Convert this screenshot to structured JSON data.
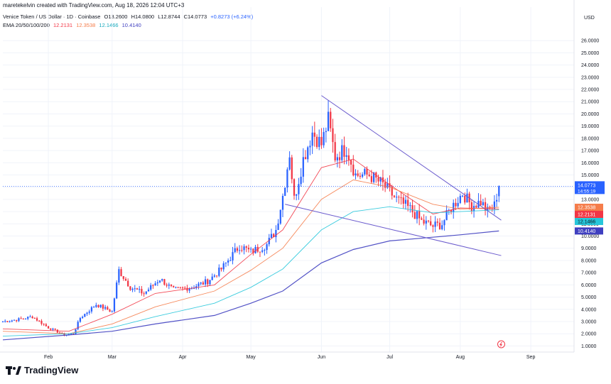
{
  "header": {
    "credit": "maretekelvin created with TradingView.com, Aug 18, 2026 12:04 UTC+3"
  },
  "symbol": {
    "title": "Venice Token / US Dollar · 1D · Coinbase",
    "open": "O13.2600",
    "high": "H14.0800",
    "low": "L12.8744",
    "close": "C14.0773",
    "change": "+0.8273 (+6.24%)"
  },
  "ema": {
    "label": "EMA 20/50/100/200",
    "v20": "12.2131",
    "v50": "12.3538",
    "v100": "12.1466",
    "v200": "10.4140"
  },
  "colors": {
    "up": "#2962ff",
    "down": "#f23645",
    "ema20": "#f23645",
    "ema50": "#f57c4a",
    "ema100": "#26c6da",
    "ema200": "#3f3fc0",
    "trend": "#6a5acd",
    "price": "#2962ff"
  },
  "footer": {
    "logo_text": "TradingView",
    "logo_icon": "tradingview-logo-icon"
  },
  "chart_data": {
    "type": "candlestick",
    "currency": "USD",
    "y_scale": "linear",
    "ylim": [
      0.5,
      27
    ],
    "y_ticks": [
      "26.0000",
      "25.0000",
      "24.0000",
      "23.0000",
      "22.0000",
      "21.0000",
      "20.0000",
      "19.0000",
      "18.0000",
      "17.0000",
      "16.0000",
      "15.0000",
      "14.0000",
      "13.0000",
      "12.0000",
      "11.0000",
      "10.0000",
      "9.0000",
      "8.0000",
      "7.0000",
      "6.0000",
      "5.0000",
      "4.0000",
      "3.0000",
      "2.0000",
      "1.0000"
    ],
    "x_ticks": [
      {
        "label": "Feb",
        "date": "2026-02-01"
      },
      {
        "label": "Mar",
        "date": "2026-03-01"
      },
      {
        "label": "Apr",
        "date": "2026-04-01"
      },
      {
        "label": "May",
        "date": "2026-05-01"
      },
      {
        "label": "Jun",
        "date": "2026-06-01"
      },
      {
        "label": "Jul",
        "date": "2026-07-01"
      },
      {
        "label": "Aug",
        "date": "2026-08-01"
      },
      {
        "label": "Sep",
        "date": "2026-09-01"
      }
    ],
    "xlim": [
      "2026-01-12",
      "2026-09-20"
    ],
    "price_label": {
      "value": "14.0773",
      "countdown": "14:55:19"
    },
    "ema_labels": [
      {
        "name": "EMA 50",
        "value": "12.3538"
      },
      {
        "name": "EMA 20",
        "value": "12.2131"
      },
      {
        "name": "EMA 100",
        "value": "12.1466"
      },
      {
        "name": "EMA 200",
        "value": "10.4140"
      }
    ],
    "key_points": [
      [
        "2026-01-12",
        3.0
      ],
      [
        "2026-01-20",
        3.2
      ],
      [
        "2026-01-25",
        3.4
      ],
      [
        "2026-02-01",
        2.5
      ],
      [
        "2026-02-08",
        1.9
      ],
      [
        "2026-02-12",
        2.0
      ],
      [
        "2026-02-15",
        3.3
      ],
      [
        "2026-02-22",
        4.4
      ],
      [
        "2026-03-01",
        3.8
      ],
      [
        "2026-03-04",
        7.2
      ],
      [
        "2026-03-09",
        5.8
      ],
      [
        "2026-03-15",
        5.3
      ],
      [
        "2026-03-22",
        6.5
      ],
      [
        "2026-03-28",
        5.6
      ],
      [
        "2026-04-05",
        5.8
      ],
      [
        "2026-04-12",
        6.3
      ],
      [
        "2026-04-18",
        7.3
      ],
      [
        "2026-04-26",
        9.2
      ],
      [
        "2026-05-01",
        8.7
      ],
      [
        "2026-05-08",
        9.3
      ],
      [
        "2026-05-12",
        10.5
      ],
      [
        "2026-05-15",
        13.3
      ],
      [
        "2026-05-18",
        16.8
      ],
      [
        "2026-05-20",
        13.0
      ],
      [
        "2026-05-24",
        16.3
      ],
      [
        "2026-05-28",
        18.5
      ],
      [
        "2026-06-01",
        17.5
      ],
      [
        "2026-06-04",
        19.5
      ],
      [
        "2026-06-07",
        16.5
      ],
      [
        "2026-06-12",
        17.2
      ],
      [
        "2026-06-16",
        15.0
      ],
      [
        "2026-06-22",
        15.0
      ],
      [
        "2026-06-28",
        14.2
      ],
      [
        "2026-07-04",
        13.0
      ],
      [
        "2026-07-10",
        12.2
      ],
      [
        "2026-07-15",
        11.2
      ],
      [
        "2026-07-20",
        10.8
      ],
      [
        "2026-07-24",
        11.0
      ],
      [
        "2026-07-28",
        12.3
      ],
      [
        "2026-08-02",
        13.5
      ],
      [
        "2026-08-06",
        12.5
      ],
      [
        "2026-08-10",
        12.8
      ],
      [
        "2026-08-13",
        12.0
      ],
      [
        "2026-08-16",
        12.5
      ],
      [
        "2026-08-18",
        14.0773
      ]
    ],
    "ema_series": {
      "EMA 20": [
        [
          "2026-01-12",
          2.4
        ],
        [
          "2026-02-10",
          2.2
        ],
        [
          "2026-03-01",
          3.6
        ],
        [
          "2026-03-20",
          5.3
        ],
        [
          "2026-04-15",
          6.0
        ],
        [
          "2026-05-01",
          8.5
        ],
        [
          "2026-05-15",
          10.5
        ],
        [
          "2026-06-01",
          15.6
        ],
        [
          "2026-06-15",
          16.3
        ],
        [
          "2026-07-01",
          14.2
        ],
        [
          "2026-07-20",
          11.8
        ],
        [
          "2026-08-01",
          12.3
        ],
        [
          "2026-08-18",
          12.2131
        ]
      ],
      "EMA 50": [
        [
          "2026-01-12",
          2.2
        ],
        [
          "2026-02-10",
          2.0
        ],
        [
          "2026-03-01",
          2.8
        ],
        [
          "2026-03-20",
          4.2
        ],
        [
          "2026-04-15",
          5.5
        ],
        [
          "2026-05-01",
          7.2
        ],
        [
          "2026-05-15",
          9.0
        ],
        [
          "2026-06-01",
          13.0
        ],
        [
          "2026-06-15",
          14.6
        ],
        [
          "2026-07-01",
          14.0
        ],
        [
          "2026-07-20",
          12.6
        ],
        [
          "2026-08-01",
          12.2
        ],
        [
          "2026-08-18",
          12.3538
        ]
      ],
      "EMA 100": [
        [
          "2026-01-12",
          1.8
        ],
        [
          "2026-02-10",
          2.0
        ],
        [
          "2026-03-01",
          2.5
        ],
        [
          "2026-03-20",
          3.4
        ],
        [
          "2026-04-15",
          4.5
        ],
        [
          "2026-05-01",
          5.8
        ],
        [
          "2026-05-15",
          7.3
        ],
        [
          "2026-06-01",
          10.5
        ],
        [
          "2026-06-15",
          12.0
        ],
        [
          "2026-07-01",
          12.4
        ],
        [
          "2026-07-20",
          11.9
        ],
        [
          "2026-08-01",
          12.0
        ],
        [
          "2026-08-18",
          12.1466
        ]
      ],
      "EMA 200": [
        [
          "2026-01-12",
          1.5
        ],
        [
          "2026-02-10",
          1.9
        ],
        [
          "2026-03-01",
          2.2
        ],
        [
          "2026-03-20",
          2.8
        ],
        [
          "2026-04-15",
          3.5
        ],
        [
          "2026-05-01",
          4.5
        ],
        [
          "2026-05-15",
          5.5
        ],
        [
          "2026-06-01",
          7.8
        ],
        [
          "2026-06-15",
          8.9
        ],
        [
          "2026-07-01",
          9.6
        ],
        [
          "2026-07-20",
          9.9
        ],
        [
          "2026-08-01",
          10.1
        ],
        [
          "2026-08-18",
          10.414
        ]
      ]
    },
    "trendlines": [
      [
        [
          "2026-06-01",
          21.5
        ],
        [
          "2026-08-19",
          11.3
        ]
      ],
      [
        [
          "2026-05-16",
          12.6
        ],
        [
          "2026-08-19",
          8.4
        ]
      ]
    ],
    "legend": "top-left",
    "grid": true
  }
}
